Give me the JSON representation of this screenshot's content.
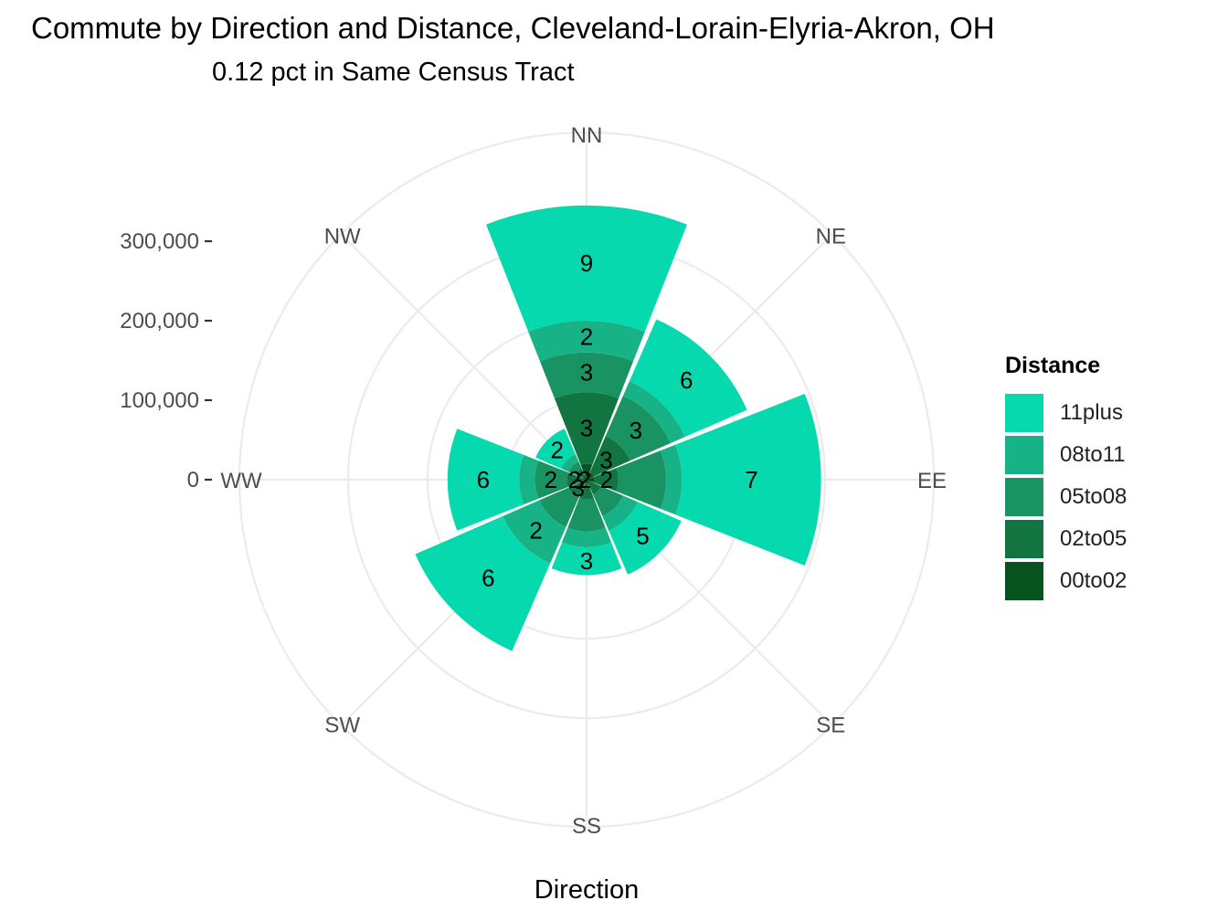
{
  "title": "Commute by Direction and Distance, Cleveland-Lorain-Elyria-Akron, OH",
  "subtitle": "0.12 pct in Same Census Tract",
  "chart_data": {
    "type": "polar-stacked-bar",
    "xlabel": "Direction",
    "categories": [
      "NN",
      "NE",
      "EE",
      "SE",
      "SS",
      "SW",
      "WW",
      "NW"
    ],
    "y_ticks": [
      0,
      100000,
      200000,
      300000
    ],
    "y_tick_labels": [
      "0",
      "100,000",
      "200,000",
      "300,000"
    ],
    "ylim": [
      0,
      300000
    ],
    "legend": {
      "title": "Distance",
      "position": "right"
    },
    "series": [
      {
        "name": "00to02",
        "color": "#07531f",
        "values": [
          20000,
          10000,
          10000,
          5000,
          5000,
          5000,
          5000,
          5000
        ]
      },
      {
        "name": "02to05",
        "color": "#127441",
        "values": [
          90000,
          50000,
          30000,
          15000,
          20000,
          20000,
          20000,
          10000
        ]
      },
      {
        "name": "05to08",
        "color": "#1a9363",
        "values": [
          50000,
          55000,
          60000,
          30000,
          40000,
          40000,
          40000,
          10000
        ]
      },
      {
        "name": "08to11",
        "color": "#17b386",
        "values": [
          40000,
          20000,
          20000,
          20000,
          20000,
          50000,
          20000,
          10000
        ]
      },
      {
        "name": "11plus",
        "color": "#06d9ae",
        "values": [
          145000,
          85000,
          175000,
          60000,
          35000,
          120000,
          90000,
          35000
        ]
      }
    ],
    "labels": {
      "00to02": [
        "",
        "",
        "",
        "",
        "",
        "",
        "2",
        ""
      ],
      "02to05": [
        "3",
        "3",
        "2",
        "",
        "",
        "3",
        "2",
        ""
      ],
      "05to08": [
        "3",
        "3",
        "",
        "",
        "",
        "",
        "2",
        ""
      ],
      "08to11": [
        "2",
        "",
        "",
        "",
        "",
        "2",
        "",
        ""
      ],
      "11plus": [
        "9",
        "6",
        "7",
        "5",
        "3",
        "6",
        "6",
        "2"
      ]
    },
    "grid": true
  }
}
